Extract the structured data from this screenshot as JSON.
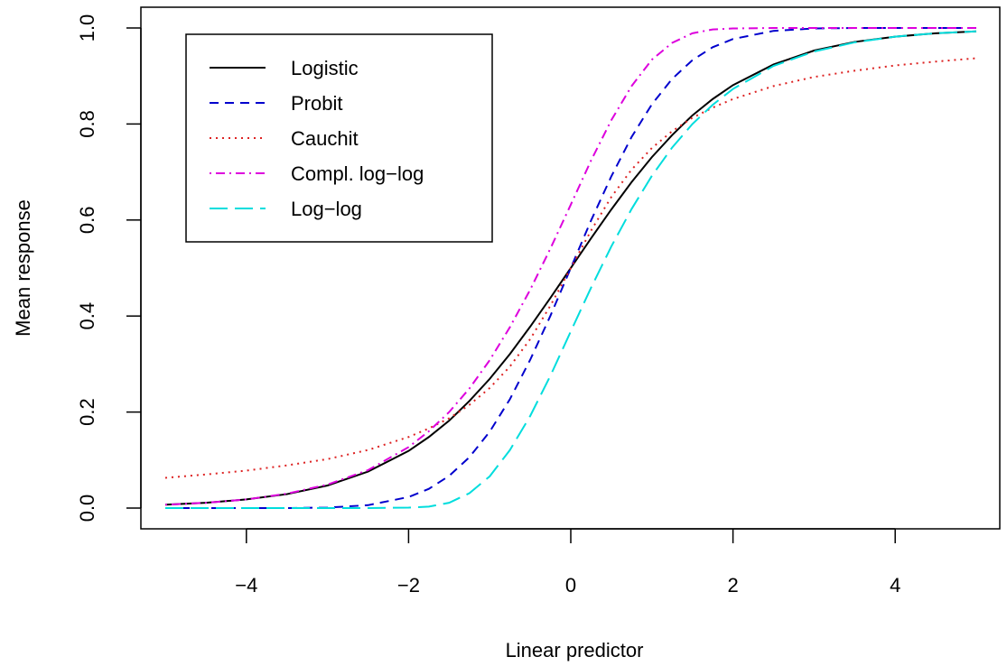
{
  "chart_data": {
    "type": "line",
    "title": "",
    "xlabel": "Linear predictor",
    "ylabel": "Mean response",
    "xlim": [
      -5,
      5
    ],
    "ylim": [
      0,
      1
    ],
    "x_ticks": [
      -4,
      -2,
      0,
      2,
      4
    ],
    "x_tick_labels": [
      "−4",
      "−2",
      "0",
      "2",
      "4"
    ],
    "y_ticks": [
      0.0,
      0.2,
      0.4,
      0.6,
      0.8,
      1.0
    ],
    "y_tick_labels": [
      "0.0",
      "0.2",
      "0.4",
      "0.6",
      "0.8",
      "1.0"
    ],
    "grid": false,
    "legend_position": "top-left",
    "x": [
      -5,
      -4.5,
      -4,
      -3.5,
      -3,
      -2.5,
      -2,
      -1.75,
      -1.5,
      -1.25,
      -1,
      -0.75,
      -0.5,
      -0.25,
      0,
      0.25,
      0.5,
      0.75,
      1,
      1.25,
      1.5,
      1.75,
      2,
      2.5,
      3,
      3.5,
      4,
      4.5,
      5
    ],
    "series": [
      {
        "name": "Logistic",
        "color": "#000000",
        "dash": "solid",
        "values": [
          0.007,
          0.011,
          0.018,
          0.029,
          0.047,
          0.076,
          0.119,
          0.148,
          0.182,
          0.223,
          0.269,
          0.321,
          0.378,
          0.438,
          0.5,
          0.562,
          0.622,
          0.679,
          0.731,
          0.777,
          0.818,
          0.852,
          0.881,
          0.924,
          0.953,
          0.971,
          0.982,
          0.989,
          0.993
        ]
      },
      {
        "name": "Probit",
        "color": "#0000cd",
        "dash": "dashed",
        "values": [
          0.0,
          0.0,
          0.0,
          0.0,
          0.001,
          0.006,
          0.023,
          0.04,
          0.067,
          0.106,
          0.159,
          0.227,
          0.309,
          0.401,
          0.5,
          0.599,
          0.691,
          0.773,
          0.841,
          0.894,
          0.933,
          0.96,
          0.977,
          0.994,
          0.999,
          1.0,
          1.0,
          1.0,
          1.0
        ]
      },
      {
        "name": "Cauchit",
        "color": "#dd2222",
        "dash": "dotted",
        "values": [
          0.063,
          0.07,
          0.078,
          0.089,
          0.102,
          0.121,
          0.148,
          0.166,
          0.187,
          0.215,
          0.25,
          0.295,
          0.352,
          0.422,
          0.5,
          0.578,
          0.648,
          0.705,
          0.75,
          0.785,
          0.813,
          0.834,
          0.852,
          0.879,
          0.898,
          0.911,
          0.922,
          0.93,
          0.937
        ]
      },
      {
        "name": "Compl. log−log",
        "color": "#dd00dd",
        "dash": "dashdot",
        "values": [
          0.007,
          0.011,
          0.018,
          0.03,
          0.049,
          0.079,
          0.127,
          0.16,
          0.2,
          0.249,
          0.308,
          0.377,
          0.455,
          0.541,
          0.632,
          0.724,
          0.808,
          0.879,
          0.934,
          0.969,
          0.989,
          0.997,
          0.999,
          1.0,
          1.0,
          1.0,
          1.0,
          1.0,
          1.0
        ]
      },
      {
        "name": "Log−log",
        "color": "#00dddd",
        "dash": "longdash",
        "values": [
          0.0,
          0.0,
          0.0,
          0.0,
          0.0,
          0.0,
          0.001,
          0.003,
          0.011,
          0.031,
          0.066,
          0.121,
          0.192,
          0.276,
          0.368,
          0.459,
          0.545,
          0.623,
          0.692,
          0.751,
          0.8,
          0.84,
          0.873,
          0.921,
          0.951,
          0.97,
          0.982,
          0.989,
          0.993
        ]
      }
    ]
  }
}
